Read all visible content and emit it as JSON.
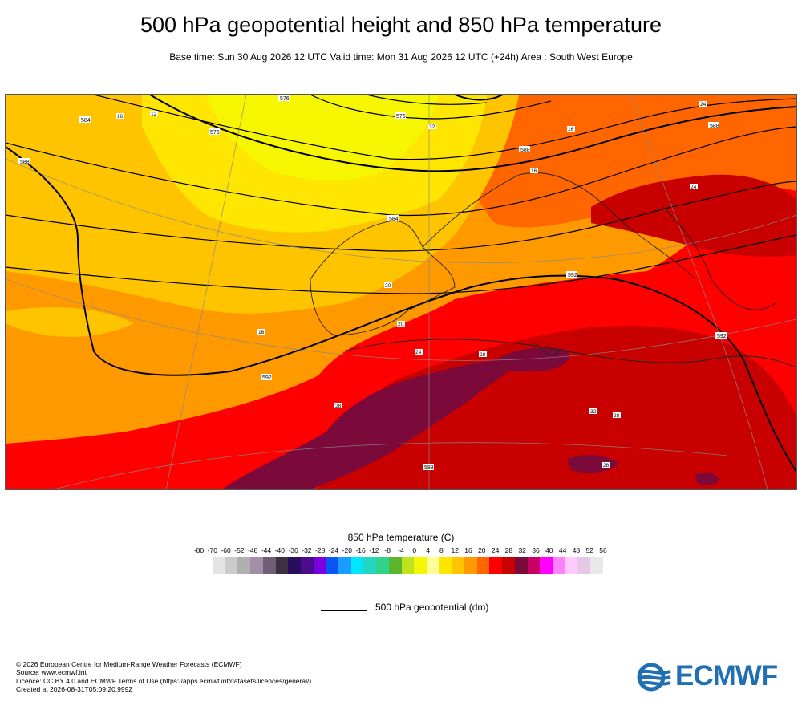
{
  "title": "500 hPa geopotential height and 850 hPa temperature",
  "subtitle": "Base time: Sun 30 Aug 2026 12 UTC Valid time: Mon 31 Aug 2026 12 UTC (+24h) Area : South West Europe",
  "colorbar": {
    "title": "850 hPa temperature (C)",
    "ticks": [
      "-80",
      "-70",
      "-60",
      "-52",
      "-48",
      "-44",
      "-40",
      "-36",
      "-32",
      "-28",
      "-24",
      "-20",
      "-16",
      "-12",
      "-8",
      "-4",
      "0",
      "4",
      "8",
      "12",
      "16",
      "20",
      "24",
      "28",
      "32",
      "36",
      "40",
      "44",
      "48",
      "52",
      "56"
    ],
    "colors": [
      "#e4e4e4",
      "#cbcbcb",
      "#b0b0b0",
      "#a58fa8",
      "#6f5f74",
      "#3b3140",
      "#2a0d5c",
      "#4a0c8c",
      "#7a00e0",
      "#0a55f5",
      "#1a9dff",
      "#00e6ff",
      "#24d6c0",
      "#2ed48a",
      "#5ab52c",
      "#c0e21d",
      "#f6f600",
      "#ffff99",
      "#ffe600",
      "#ffc400",
      "#ff9900",
      "#ff6600",
      "#ff0000",
      "#c80000",
      "#7b0a3a",
      "#c80064",
      "#ff00ff",
      "#ff80ff",
      "#ffccff",
      "#e6c8e6",
      "#e8e8e8"
    ]
  },
  "legend": {
    "label": "500 hPa geopotential (dm)"
  },
  "map": {
    "contour_labels": [
      "588",
      "584",
      "576",
      "576",
      "584",
      "588",
      "588",
      "592",
      "592",
      "592",
      "588",
      "576"
    ],
    "temp_labels": [
      "16",
      "12",
      "16",
      "20",
      "16",
      "16",
      "20",
      "24",
      "28",
      "28",
      "32",
      "24",
      "24",
      "28",
      "28",
      "32"
    ]
  },
  "footer": {
    "lines": [
      "© 2026 European Centre for Medium-Range Weather Forecasts (ECMWF)",
      "Source: www.ecmwf.int",
      "Licence: CC BY 4.0 and ECMWF Terms of Use (https://apps.ecmwf.int/datasets/licences/general/)",
      "Created at 2026-08-31T05:09:20.999Z"
    ]
  },
  "logo": {
    "text": "ECMWF",
    "color": "#1f6fb2",
    "icon": "ecmwf-logo-icon"
  }
}
